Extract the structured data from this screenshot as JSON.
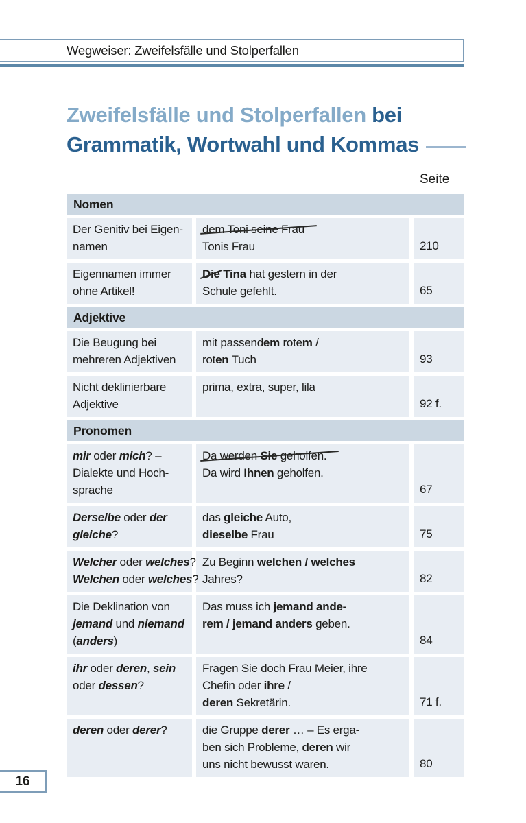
{
  "page": {
    "running_header": "Wegweiser: Zweifelsfälle und Stolperfallen",
    "page_number": "16"
  },
  "title": {
    "light": "Zweifelsfälle und Stolperfallen",
    "bei": " bei",
    "line2": "Grammatik, Wortwahl und Kommas"
  },
  "colors": {
    "title_light_blue": "#84aac8",
    "title_dark_blue": "#2a608f",
    "section_header_bg": "#cbd7e2",
    "row_bg": "#e8edf3",
    "box_border_blue": "#7e9db8",
    "rule_blue": "#5c87a8",
    "text": "#1d1d1b"
  },
  "table": {
    "page_col_label": "Seite",
    "sections": [
      {
        "header": "Nomen",
        "rows": [
          {
            "left": [
              {
                "runs": [
                  {
                    "t": "Der Genitiv bei Eigen-"
                  }
                ]
              },
              {
                "runs": [
                  {
                    "t": "namen"
                  }
                ]
              }
            ],
            "mid": [
              {
                "strike": true,
                "runs": [
                  {
                    "t": "dem Toni seine Frau"
                  }
                ]
              },
              {
                "runs": [
                  {
                    "t": "Tonis Frau"
                  }
                ]
              }
            ],
            "page": "210"
          },
          {
            "left": [
              {
                "runs": [
                  {
                    "t": "Eigennamen immer"
                  }
                ]
              },
              {
                "runs": [
                  {
                    "t": "ohne Artikel!"
                  }
                ]
              }
            ],
            "mid": [
              {
                "runs": [
                  {
                    "t": "Die",
                    "b": 1,
                    "slash": 1
                  },
                  {
                    "t": " Tina",
                    "b": 1
                  },
                  {
                    "t": " hat gestern in der"
                  }
                ]
              },
              {
                "runs": [
                  {
                    "t": "Schule gefehlt."
                  }
                ]
              }
            ],
            "page": "65"
          }
        ]
      },
      {
        "header": "Adjektive",
        "rows": [
          {
            "left": [
              {
                "runs": [
                  {
                    "t": "Die Beugung bei"
                  }
                ]
              },
              {
                "runs": [
                  {
                    "t": "mehreren Adjektiven"
                  }
                ]
              }
            ],
            "mid": [
              {
                "runs": [
                  {
                    "t": "mit passend"
                  },
                  {
                    "t": "em",
                    "b": 1
                  },
                  {
                    "t": " rote"
                  },
                  {
                    "t": "m",
                    "b": 1
                  },
                  {
                    "t": " /"
                  }
                ]
              },
              {
                "runs": [
                  {
                    "t": "rot"
                  },
                  {
                    "t": "en",
                    "b": 1
                  },
                  {
                    "t": " Tuch"
                  }
                ]
              }
            ],
            "page": "93"
          },
          {
            "left": [
              {
                "runs": [
                  {
                    "t": "Nicht deklinierbare"
                  }
                ]
              },
              {
                "runs": [
                  {
                    "t": "Adjektive"
                  }
                ]
              }
            ],
            "mid": [
              {
                "runs": [
                  {
                    "t": "prima, extra, super, lila"
                  }
                ]
              }
            ],
            "page": "92 f."
          }
        ]
      },
      {
        "header": "Pronomen",
        "rows": [
          {
            "left": [
              {
                "runs": [
                  {
                    "t": "mir",
                    "b": 1,
                    "i": 1
                  },
                  {
                    "t": " oder "
                  },
                  {
                    "t": "mich",
                    "b": 1,
                    "i": 1
                  },
                  {
                    "t": "? –"
                  }
                ]
              },
              {
                "runs": [
                  {
                    "t": "Dialekte und Hoch-"
                  }
                ]
              },
              {
                "runs": [
                  {
                    "t": "sprache"
                  }
                ]
              }
            ],
            "mid": [
              {
                "strike": true,
                "runs": [
                  {
                    "t": "Da werden "
                  },
                  {
                    "t": "Sie",
                    "b": 1
                  },
                  {
                    "t": " geholfen."
                  }
                ]
              },
              {
                "runs": [
                  {
                    "t": "Da wird "
                  },
                  {
                    "t": "Ihnen",
                    "b": 1
                  },
                  {
                    "t": " geholfen."
                  }
                ]
              }
            ],
            "page": "67"
          },
          {
            "left": [
              {
                "runs": [
                  {
                    "t": "Derselbe",
                    "b": 1,
                    "i": 1
                  },
                  {
                    "t": " oder "
                  },
                  {
                    "t": "der",
                    "b": 1,
                    "i": 1
                  }
                ]
              },
              {
                "runs": [
                  {
                    "t": "gleiche",
                    "b": 1,
                    "i": 1
                  },
                  {
                    "t": "?"
                  }
                ]
              }
            ],
            "mid": [
              {
                "runs": [
                  {
                    "t": "das "
                  },
                  {
                    "t": "gleiche",
                    "b": 1
                  },
                  {
                    "t": " Auto,"
                  }
                ]
              },
              {
                "runs": [
                  {
                    "t": "dieselbe",
                    "b": 1
                  },
                  {
                    "t": " Frau"
                  }
                ]
              }
            ],
            "page": "75"
          },
          {
            "left": [
              {
                "runs": [
                  {
                    "t": "Welcher",
                    "b": 1,
                    "i": 1
                  },
                  {
                    "t": " oder "
                  },
                  {
                    "t": "welches",
                    "b": 1,
                    "i": 1
                  },
                  {
                    "t": "?"
                  }
                ]
              },
              {
                "runs": [
                  {
                    "t": "Welchen",
                    "b": 1,
                    "i": 1
                  },
                  {
                    "t": " oder "
                  },
                  {
                    "t": "welches",
                    "b": 1,
                    "i": 1
                  },
                  {
                    "t": "?"
                  }
                ]
              }
            ],
            "mid": [
              {
                "runs": [
                  {
                    "t": "Zu Beginn "
                  },
                  {
                    "t": "welchen / welches",
                    "b": 1
                  }
                ]
              },
              {
                "runs": [
                  {
                    "t": "Jahres?"
                  }
                ]
              }
            ],
            "page": "82"
          },
          {
            "left": [
              {
                "runs": [
                  {
                    "t": "Die Deklination von"
                  }
                ]
              },
              {
                "runs": [
                  {
                    "t": "jemand",
                    "b": 1,
                    "i": 1
                  },
                  {
                    "t": " und "
                  },
                  {
                    "t": "niemand",
                    "b": 1,
                    "i": 1
                  }
                ]
              },
              {
                "runs": [
                  {
                    "t": "("
                  },
                  {
                    "t": "anders",
                    "b": 1,
                    "i": 1
                  },
                  {
                    "t": ")"
                  }
                ]
              }
            ],
            "mid": [
              {
                "runs": [
                  {
                    "t": "Das muss ich "
                  },
                  {
                    "t": "jemand ande-",
                    "b": 1
                  }
                ]
              },
              {
                "runs": [
                  {
                    "t": "rem / jemand anders",
                    "b": 1
                  },
                  {
                    "t": " geben."
                  }
                ]
              }
            ],
            "page": "84"
          },
          {
            "left": [
              {
                "runs": [
                  {
                    "t": "ihr",
                    "b": 1,
                    "i": 1
                  },
                  {
                    "t": " oder "
                  },
                  {
                    "t": "deren",
                    "b": 1,
                    "i": 1
                  },
                  {
                    "t": ", "
                  },
                  {
                    "t": "sein",
                    "b": 1,
                    "i": 1
                  }
                ]
              },
              {
                "runs": [
                  {
                    "t": "oder "
                  },
                  {
                    "t": "dessen",
                    "b": 1,
                    "i": 1
                  },
                  {
                    "t": "?"
                  }
                ]
              }
            ],
            "mid": [
              {
                "runs": [
                  {
                    "t": "Fragen Sie doch Frau Meier, ihre"
                  }
                ]
              },
              {
                "runs": [
                  {
                    "t": "Chefin oder "
                  },
                  {
                    "t": "ihre",
                    "b": 1
                  },
                  {
                    "t": " /"
                  }
                ]
              },
              {
                "runs": [
                  {
                    "t": "deren",
                    "b": 1
                  },
                  {
                    "t": " Sekretärin."
                  }
                ]
              }
            ],
            "page": "71 f."
          },
          {
            "left": [
              {
                "runs": [
                  {
                    "t": "deren",
                    "b": 1,
                    "i": 1
                  },
                  {
                    "t": " oder "
                  },
                  {
                    "t": "derer",
                    "b": 1,
                    "i": 1
                  },
                  {
                    "t": "?"
                  }
                ]
              }
            ],
            "mid": [
              {
                "runs": [
                  {
                    "t": "die Gruppe "
                  },
                  {
                    "t": "derer",
                    "b": 1
                  },
                  {
                    "t": " … – Es erga-"
                  }
                ]
              },
              {
                "runs": [
                  {
                    "t": "ben sich Probleme, "
                  },
                  {
                    "t": "deren",
                    "b": 1
                  },
                  {
                    "t": " wir"
                  }
                ]
              },
              {
                "runs": [
                  {
                    "t": "uns nicht bewusst waren."
                  }
                ]
              }
            ],
            "page": "80"
          }
        ]
      }
    ]
  }
}
